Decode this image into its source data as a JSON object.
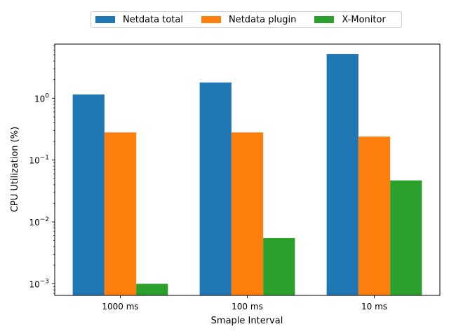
{
  "chart_data": {
    "type": "bar",
    "title": "",
    "xlabel": "Smaple Interval",
    "ylabel": "CPU Utilization (%)",
    "yscale": "log",
    "ylim": [
      0.00065,
      7.5
    ],
    "categories": [
      "1000 ms",
      "100 ms",
      "10 ms"
    ],
    "yticks": [
      {
        "value": 0.001,
        "base": "10",
        "exp": "−3"
      },
      {
        "value": 0.01,
        "base": "10",
        "exp": "−2"
      },
      {
        "value": 0.1,
        "base": "10",
        "exp": "−1"
      },
      {
        "value": 1,
        "base": "10",
        "exp": "0"
      }
    ],
    "legend_position": "top-center",
    "series": [
      {
        "name": "Netdata total",
        "color": "#1f77b4",
        "values": [
          1.15,
          1.8,
          5.2
        ]
      },
      {
        "name": "Netdata plugin",
        "color": "#ff7f0e",
        "values": [
          0.28,
          0.28,
          0.24
        ]
      },
      {
        "name": "X-Monitor",
        "color": "#2ca02c",
        "values": [
          0.001,
          0.0055,
          0.047
        ]
      }
    ]
  }
}
